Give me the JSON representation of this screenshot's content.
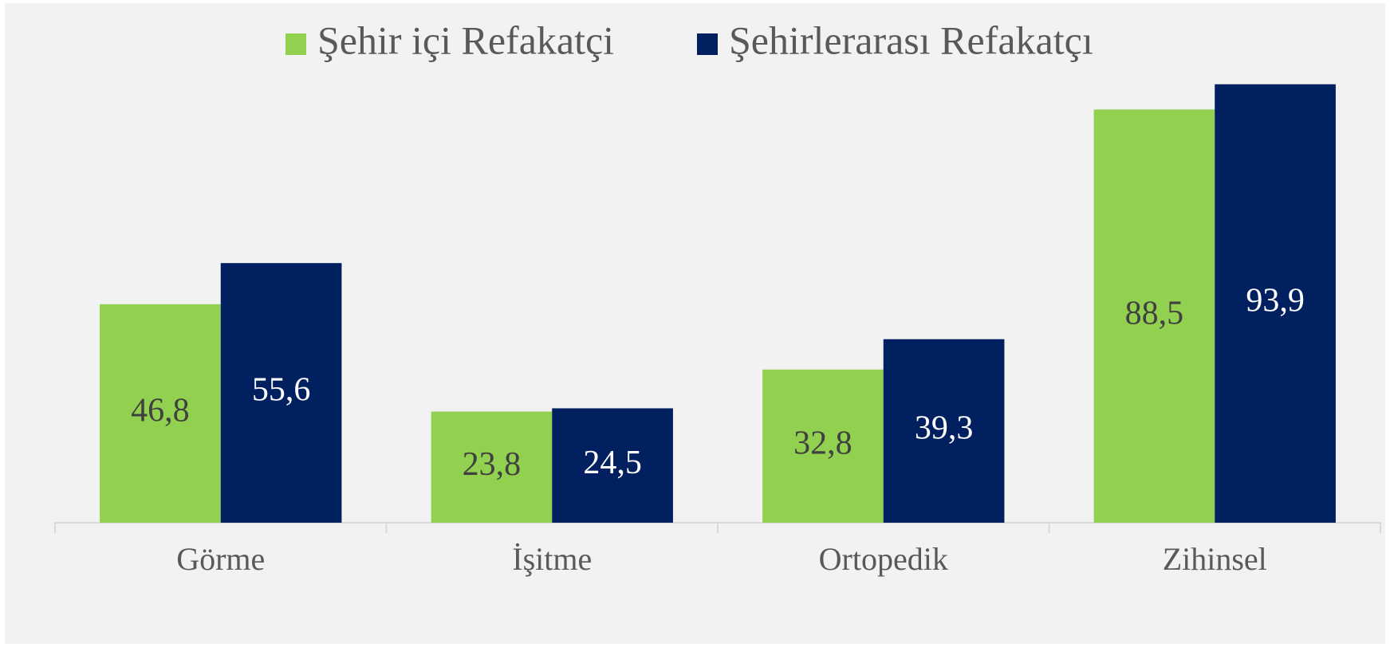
{
  "chart_data": {
    "type": "bar",
    "categories": [
      "Görme",
      "İşitme",
      "Ortopedik",
      "Zihinsel"
    ],
    "series": [
      {
        "name": "Şehir içi Refakatçi",
        "color": "#92d050",
        "label_color": "#404040",
        "values": [
          46.8,
          23.8,
          32.8,
          88.5
        ],
        "value_labels": [
          "46,8",
          "23,8",
          "32,8",
          "88,5"
        ]
      },
      {
        "name": "Şehirlerarası Refakatçı",
        "color": "#002060",
        "label_color": "#ffffff",
        "values": [
          55.6,
          24.5,
          39.3,
          93.9
        ],
        "value_labels": [
          "55,6",
          "24,5",
          "39,3",
          "93,9"
        ]
      }
    ],
    "ylim": [
      0,
      100
    ],
    "legend": "top"
  }
}
